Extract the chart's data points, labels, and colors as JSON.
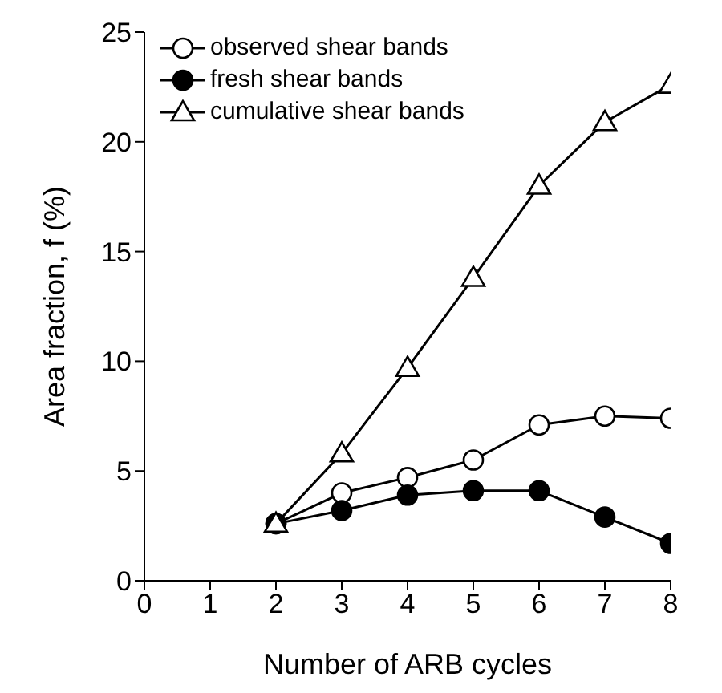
{
  "chart_data": {
    "type": "line",
    "xlabel": "Number of ARB cycles",
    "ylabel": "Area fraction, f (%)",
    "x": [
      2,
      3,
      4,
      5,
      6,
      7,
      8
    ],
    "xlim": [
      0,
      8
    ],
    "xticks": [
      0,
      1,
      2,
      3,
      4,
      5,
      6,
      7,
      8
    ],
    "ylim": [
      0,
      25
    ],
    "yticks": [
      0,
      5,
      10,
      15,
      20,
      25
    ],
    "grid": false,
    "legend": "top left",
    "line_style": "solid",
    "series": [
      {
        "name": "observed shear bands",
        "color": "#000000",
        "marker": "circle-open",
        "values": [
          2.6,
          4.0,
          4.7,
          5.5,
          7.1,
          7.5,
          7.4
        ]
      },
      {
        "name": "fresh shear bands",
        "color": "#000000",
        "marker": "circle",
        "values": [
          2.6,
          3.2,
          3.9,
          4.1,
          4.1,
          2.9,
          1.7
        ]
      },
      {
        "name": "cumulative shear bands",
        "color": "#000000",
        "marker": "triangle-open",
        "values": [
          2.6,
          5.8,
          9.7,
          13.8,
          18.0,
          20.9,
          22.6
        ]
      }
    ]
  }
}
